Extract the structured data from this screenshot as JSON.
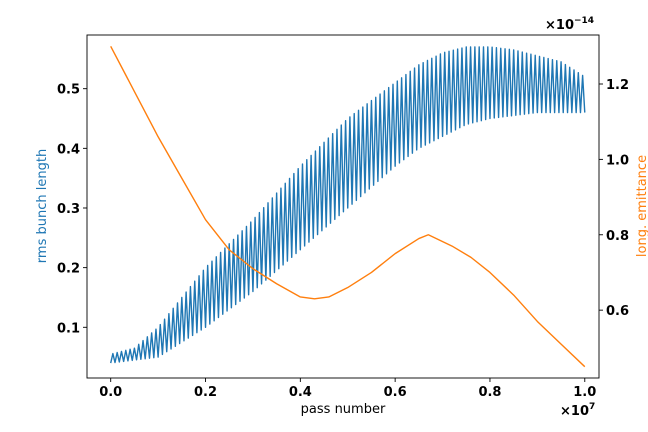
{
  "chart_data": {
    "type": "line",
    "title": "",
    "xlabel": "pass number",
    "ylabel_left": "rms bunch length",
    "ylabel_right": "long. emittance",
    "x_multiplier_base": "×10",
    "x_multiplier_exp": "7",
    "y_right_multiplier_base": "×10",
    "y_right_multiplier_exp": "−14",
    "xlim": [
      -0.05,
      1.03
    ],
    "ylim_left": [
      0.015,
      0.59
    ],
    "ylim_right": [
      0.42,
      1.33
    ],
    "x_ticks": [
      0.0,
      0.2,
      0.4,
      0.6,
      0.8,
      1.0
    ],
    "x_tick_labels": [
      "0.0",
      "0.2",
      "0.4",
      "0.6",
      "0.8",
      "1.0"
    ],
    "y_left_ticks": [
      0.1,
      0.2,
      0.3,
      0.4,
      0.5
    ],
    "y_left_tick_labels": [
      "0.1",
      "0.2",
      "0.3",
      "0.4",
      "0.5"
    ],
    "y_right_ticks": [
      0.6,
      0.8,
      1.0,
      1.2
    ],
    "y_right_tick_labels": [
      "0.6",
      "0.8",
      "1.0",
      "1.2"
    ],
    "grid": false,
    "series": [
      {
        "axis": "left",
        "color": "#1f77b4",
        "style": "oscillating",
        "oscillation_cycles": 110,
        "upper_envelope": {
          "x": [
            0.0,
            0.05,
            0.1,
            0.2,
            0.3,
            0.4,
            0.5,
            0.6,
            0.65,
            0.7,
            0.75,
            0.8,
            0.85,
            0.9,
            0.95,
            1.0
          ],
          "y": [
            0.055,
            0.065,
            0.1,
            0.2,
            0.28,
            0.37,
            0.45,
            0.51,
            0.54,
            0.56,
            0.57,
            0.57,
            0.565,
            0.555,
            0.545,
            0.52
          ]
        },
        "lower_envelope": {
          "x": [
            0.0,
            0.05,
            0.1,
            0.2,
            0.3,
            0.4,
            0.5,
            0.6,
            0.65,
            0.7,
            0.75,
            0.8,
            0.85,
            0.9,
            0.95,
            1.0
          ],
          "y": [
            0.04,
            0.045,
            0.05,
            0.1,
            0.16,
            0.23,
            0.3,
            0.37,
            0.4,
            0.42,
            0.44,
            0.45,
            0.455,
            0.46,
            0.46,
            0.46
          ]
        }
      },
      {
        "axis": "right",
        "color": "#ff7f0e",
        "style": "line",
        "x": [
          0.0,
          0.05,
          0.1,
          0.15,
          0.2,
          0.25,
          0.3,
          0.35,
          0.4,
          0.43,
          0.46,
          0.5,
          0.55,
          0.6,
          0.65,
          0.67,
          0.72,
          0.76,
          0.8,
          0.85,
          0.9,
          0.95,
          1.0
        ],
        "y": [
          1.3,
          1.18,
          1.06,
          0.95,
          0.84,
          0.76,
          0.71,
          0.67,
          0.635,
          0.63,
          0.635,
          0.66,
          0.7,
          0.75,
          0.79,
          0.8,
          0.77,
          0.74,
          0.7,
          0.64,
          0.57,
          0.51,
          0.45
        ]
      }
    ]
  }
}
